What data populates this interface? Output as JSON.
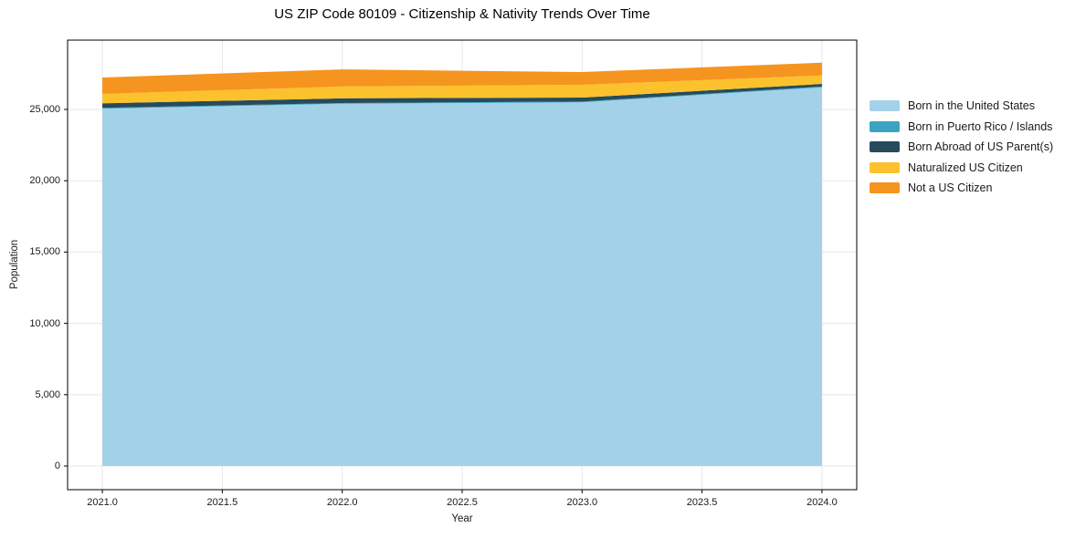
{
  "chart_data": {
    "type": "area",
    "stacked": true,
    "title": "US ZIP Code 80109 - Citizenship & Nativity Trends Over Time",
    "xlabel": "Year",
    "ylabel": "Population",
    "x": [
      2021,
      2022,
      2023,
      2024
    ],
    "series": [
      {
        "name": "Born in the United States",
        "color": "#A3D2E8",
        "values": [
          25050,
          25400,
          25500,
          26550
        ]
      },
      {
        "name": "Born in Puerto Rico / Islands",
        "color": "#3CA3C2",
        "values": [
          60,
          50,
          50,
          60
        ]
      },
      {
        "name": "Born Abroad of US Parent(s)",
        "color": "#264B5C",
        "values": [
          320,
          330,
          280,
          180
        ]
      },
      {
        "name": "Naturalized US Citizen",
        "color": "#FCC22D",
        "values": [
          660,
          830,
          900,
          590
        ]
      },
      {
        "name": "Not a US Citizen",
        "color": "#F69420",
        "values": [
          1150,
          1200,
          890,
          900
        ]
      }
    ],
    "totals": [
      27240,
      27810,
      27620,
      28280
    ],
    "x_ticks": {
      "values": [
        2021.0,
        2021.5,
        2022.0,
        2022.5,
        2023.0,
        2023.5,
        2024.0
      ],
      "labels": [
        "2021.0",
        "2021.5",
        "2022.0",
        "2022.5",
        "2023.0",
        "2023.5",
        "2024.0"
      ]
    },
    "y_ticks": {
      "values": [
        0,
        5000,
        10000,
        15000,
        20000,
        25000
      ],
      "labels": [
        "0",
        "5,000",
        "10,000",
        "15,000",
        "20,000",
        "25,000"
      ]
    },
    "xlim": [
      2020.855,
      2024.145
    ],
    "ylim": [
      -1660,
      29860
    ],
    "grid": true,
    "grid_color": "#e7e7e7",
    "legend_position": "right of plot, no frame"
  }
}
